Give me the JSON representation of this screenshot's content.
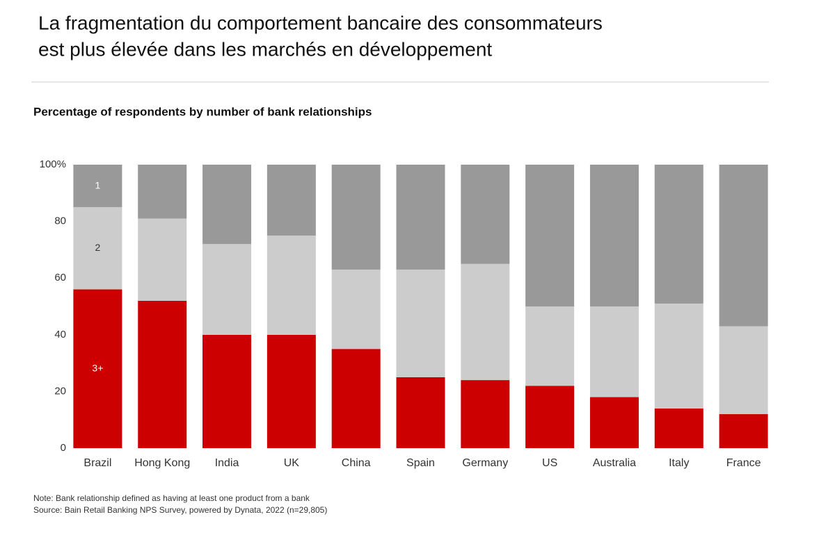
{
  "chart_data": {
    "type": "stacked_bar",
    "title": [
      "La fragmentation du comportement bancaire des consommateurs",
      "est plus élevée dans les marchés en développement"
    ],
    "subtitle": "Percentage of respondents by number of bank relationships",
    "categories": [
      "Brazil",
      "Hong Kong",
      "India",
      "UK",
      "China",
      "Spain",
      "Germany",
      "US",
      "Australia",
      "Italy",
      "France"
    ],
    "series": [
      {
        "name": "3+",
        "color": "#cc0000",
        "values": [
          56,
          52,
          40,
          40,
          35,
          25,
          24,
          22,
          18,
          14,
          12
        ]
      },
      {
        "name": "2",
        "color": "#cccccc",
        "values": [
          29,
          29,
          32,
          35,
          28,
          38,
          41,
          28,
          32,
          37,
          31
        ]
      },
      {
        "name": "1",
        "color": "#999999",
        "values": [
          15,
          19,
          28,
          25,
          37,
          37,
          35,
          50,
          50,
          49,
          57
        ]
      }
    ],
    "ylim": [
      0,
      100
    ],
    "yticks": [
      0,
      20,
      40,
      60,
      80,
      {
        "value": 100,
        "label": "100%"
      }
    ],
    "grid": false,
    "notes": [
      "Note: Bank relationship defined as having at least one product from a bank",
      "Source: Bain Retail Banking NPS Survey, powered by Dynata, 2022 (n=29,805)"
    ]
  }
}
